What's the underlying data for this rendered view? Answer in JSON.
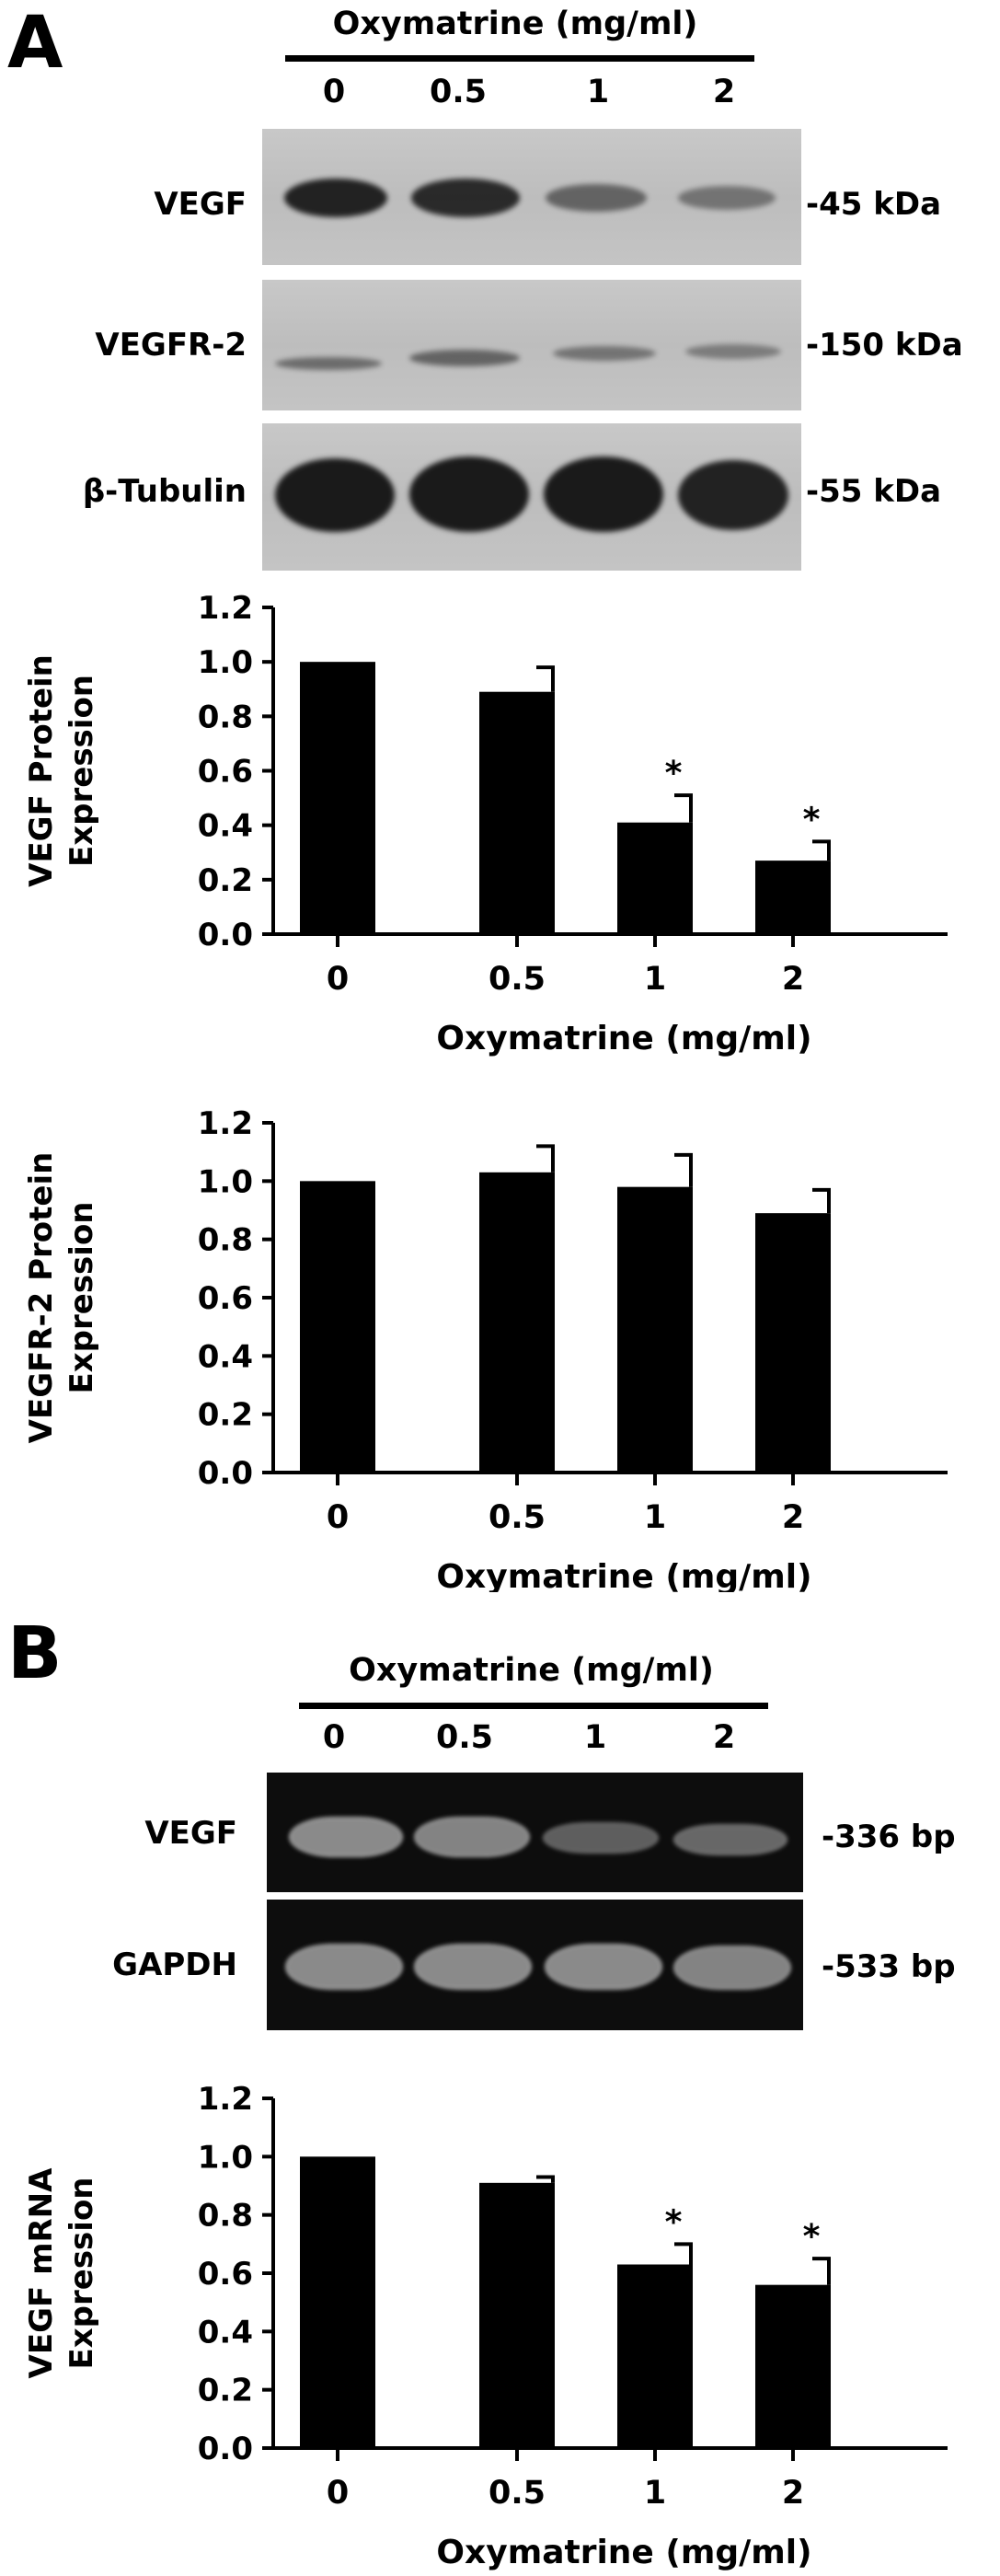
{
  "panelA": {
    "letter": "A",
    "header": {
      "title": "Oxymatrine (mg/ml)",
      "lanes": [
        "0",
        "0.5",
        "1",
        "2"
      ]
    },
    "blots": [
      {
        "label": "VEGF",
        "size": "-45 kDa",
        "intensities": [
          0.95,
          0.9,
          0.55,
          0.45
        ]
      },
      {
        "label": "VEGFR-2",
        "size": "-150 kDa",
        "intensities": [
          0.5,
          0.55,
          0.45,
          0.4
        ]
      },
      {
        "label": "β-Tubulin",
        "size": "-55 kDa",
        "intensities": [
          1.0,
          1.0,
          1.0,
          0.95
        ]
      }
    ]
  },
  "panelB": {
    "letter": "B",
    "header": {
      "title": "Oxymatrine (mg/ml)",
      "lanes": [
        "0",
        "0.5",
        "1",
        "2"
      ]
    },
    "gels": [
      {
        "label": "VEGF",
        "size": "-336 bp",
        "intensities": [
          0.9,
          0.85,
          0.6,
          0.65
        ]
      },
      {
        "label": "GAPDH",
        "size": "-533 bp",
        "intensities": [
          0.85,
          0.85,
          0.85,
          0.82
        ]
      }
    ]
  },
  "chart_data": [
    {
      "type": "bar",
      "categories": [
        "0",
        "0.5",
        "1",
        "2"
      ],
      "values": [
        1.0,
        0.89,
        0.41,
        0.27
      ],
      "errors": [
        0,
        0.09,
        0.1,
        0.07
      ],
      "significance": [
        "",
        "",
        "*",
        "*"
      ],
      "xlabel": "Oxymatrine (mg/ml)",
      "ylabel": [
        "VEGF Protein",
        "Expression"
      ],
      "ylim": [
        0,
        1.2
      ],
      "yticks": [
        "0.0",
        "0.2",
        "0.4",
        "0.6",
        "0.8",
        "1.0",
        "1.2"
      ],
      "bar_color": "#000000"
    },
    {
      "type": "bar",
      "categories": [
        "0",
        "0.5",
        "1",
        "2"
      ],
      "values": [
        1.0,
        1.03,
        0.98,
        0.89
      ],
      "errors": [
        0,
        0.09,
        0.11,
        0.08
      ],
      "significance": [
        "",
        "",
        "",
        ""
      ],
      "xlabel": "Oxymatrine (mg/ml)",
      "ylabel": [
        "VEGFR-2 Protein",
        "Expression"
      ],
      "ylim": [
        0,
        1.2
      ],
      "yticks": [
        "0.0",
        "0.2",
        "0.4",
        "0.6",
        "0.8",
        "1.0",
        "1.2"
      ],
      "bar_color": "#000000"
    },
    {
      "type": "bar",
      "categories": [
        "0",
        "0.5",
        "1",
        "2"
      ],
      "values": [
        1.0,
        0.91,
        0.63,
        0.56
      ],
      "errors": [
        0,
        0.02,
        0.07,
        0.09
      ],
      "significance": [
        "",
        "",
        "*",
        "*"
      ],
      "xlabel": "Oxymatrine (mg/ml)",
      "ylabel": [
        "VEGF mRNA",
        "Expression"
      ],
      "ylim": [
        0,
        1.2
      ],
      "yticks": [
        "0.0",
        "0.2",
        "0.4",
        "0.6",
        "0.8",
        "1.0",
        "1.2"
      ],
      "bar_color": "#000000"
    }
  ]
}
